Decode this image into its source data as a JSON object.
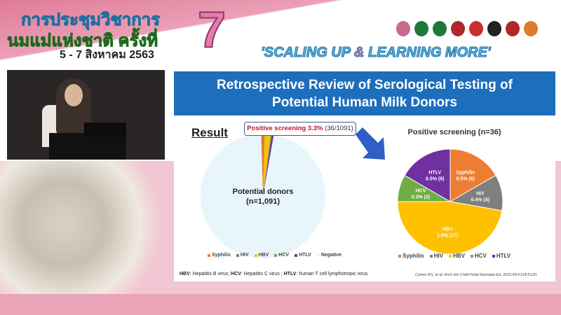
{
  "header": {
    "thai_line1": "การประชุมวิชาการ",
    "thai_line2": "นมแม่แห่งชาติ ครั้งที่",
    "edition": "7",
    "date": "5 - 7 สิงหาคม 2563",
    "slogan_a": "'SCALING UP ",
    "slogan_amp": "&",
    "slogan_b": " LEARNING MORE'",
    "logo_colors": [
      "#c46a8f",
      "#1d7a3a",
      "#1d7a3a",
      "#b0282b",
      "#c9302c",
      "#222222",
      "#b0282b",
      "#e07b2a"
    ]
  },
  "slide": {
    "title_line1": "Retrospective Review of Serological Testing of",
    "title_line2": "Potential Human Milk Donors",
    "result_label": "Result",
    "callout_bold": "Positive screening 3.3%",
    "callout_rest": " (36/1091)",
    "left_center_line1": "Potential donors",
    "left_center_line2": "(n=1,091)",
    "right_title": "Positive screening (n=36)",
    "footnote": {
      "hbv": "HBV",
      "hbv_text": ": Hepatitis B virus; ",
      "hcv": "HCV",
      "hcv_text": ": Hepatitis C virus ; ",
      "htlv": "HTLV",
      "htlv_text": ": human T cell lymphotropic virus"
    },
    "citation": "Cohen RS, et al. Arch Dis Child Fetal Neonatal Ed. 2010;95:F118-F120."
  },
  "chart_data": [
    {
      "type": "pie",
      "title": "",
      "categories": [
        "Syphilis",
        "HIV",
        "HBV",
        "HCV",
        "HTLV",
        "Negative"
      ],
      "values": [
        6,
        4,
        17,
        3,
        6,
        1055
      ],
      "colors": [
        "#ed7d31",
        "#7f7f7f",
        "#ffc000",
        "#70ad47",
        "#7030a0",
        "#e8f6fc"
      ],
      "legend": "bottom"
    },
    {
      "type": "pie",
      "title": "Positive screening (n=36)",
      "categories": [
        "Syphilis",
        "HIV",
        "HBV",
        "HCV",
        "HTLV"
      ],
      "values": [
        6,
        4,
        17,
        3,
        6
      ],
      "data_labels": [
        "0.5% (6)",
        "0.4% (4)",
        "1.6% (17)",
        "0.3% (3)",
        "0.5% (6)"
      ],
      "colors": [
        "#ed7d31",
        "#7f7f7f",
        "#ffc000",
        "#70ad47",
        "#7030a0"
      ],
      "legend": "bottom"
    }
  ]
}
